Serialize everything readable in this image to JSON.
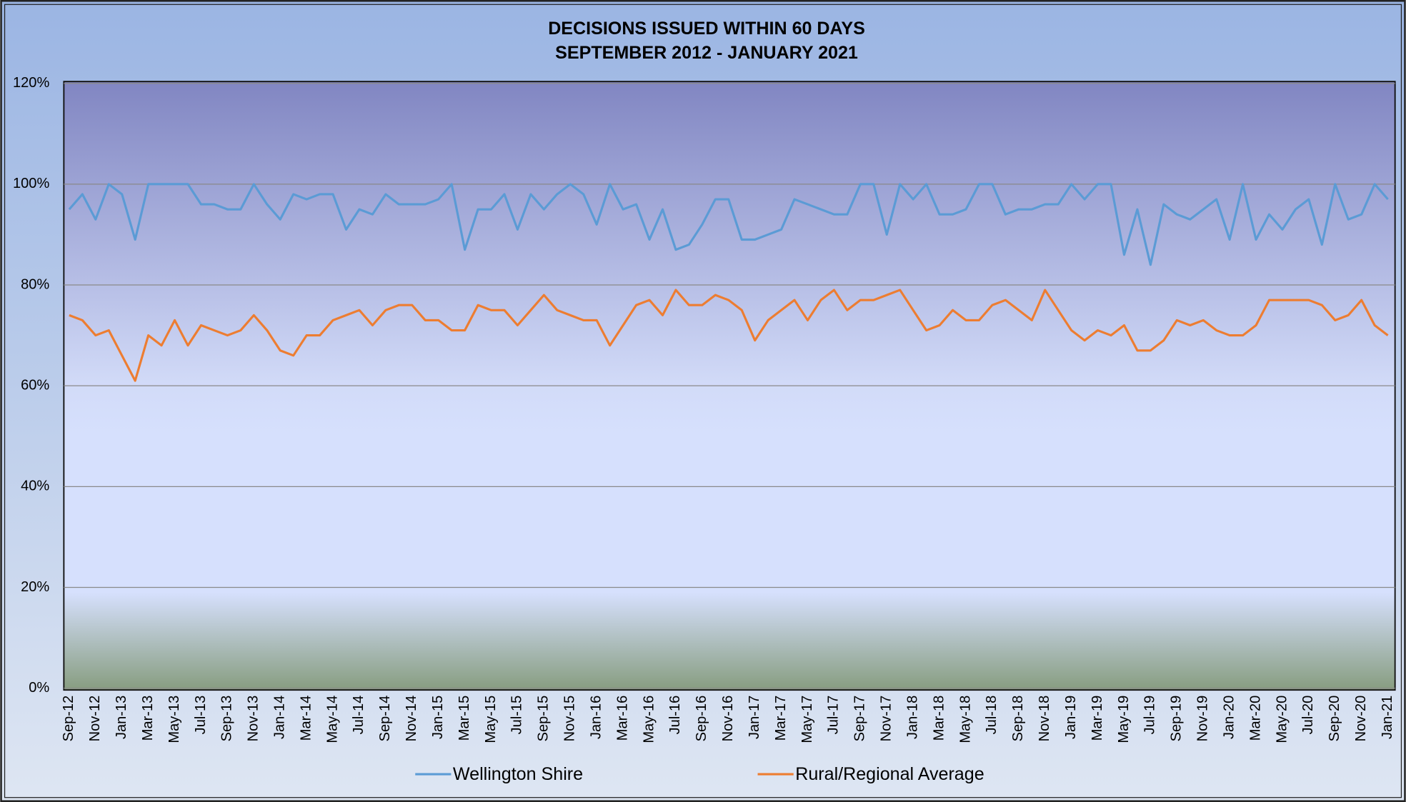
{
  "chart_data": {
    "type": "line",
    "title": "DECISIONS  ISSUED WITHIN 60 DAYS",
    "subtitle": "SEPTEMBER 2012 - JANUARY 2021",
    "categories": [
      "Sep-12",
      null,
      "Nov-12",
      null,
      "Jan-13",
      null,
      "Mar-13",
      null,
      "May-13",
      null,
      "Jul-13",
      null,
      "Sep-13",
      null,
      "Nov-13",
      null,
      "Jan-14",
      null,
      "Mar-14",
      null,
      "May-14",
      null,
      "Jul-14",
      null,
      "Sep-14",
      null,
      "Nov-14",
      null,
      "Jan-15",
      null,
      "Mar-15",
      null,
      "May-15",
      null,
      "Jul-15",
      null,
      "Sep-15",
      null,
      "Nov-15",
      null,
      "Jan-16",
      null,
      "Mar-16",
      null,
      "May-16",
      null,
      "Jul-16",
      null,
      "Sep-16",
      null,
      "Nov-16",
      null,
      "Jan-17",
      null,
      "Mar-17",
      null,
      "May-17",
      null,
      "Jul-17",
      null,
      "Sep-17",
      null,
      "Nov-17",
      null,
      "Jan-18",
      null,
      "Mar-18",
      null,
      "May-18",
      null,
      "Jul-18",
      null,
      "Sep-18",
      null,
      "Nov-18",
      null,
      "Jan-19",
      null,
      "Mar-19",
      null,
      "May-19",
      null,
      "Jul-19",
      null,
      "Sep-19",
      null,
      "Nov-19",
      null,
      "Jan-20",
      null,
      "Mar-20",
      null,
      "May-20",
      null,
      "Jul-20",
      null,
      "Sep-20",
      null,
      "Nov-20",
      null,
      "Jan-21"
    ],
    "series": [
      {
        "name": "Wellington Shire",
        "color": "#5b9bd5",
        "values": [
          95,
          98,
          93,
          100,
          98,
          89,
          100,
          100,
          100,
          100,
          96,
          96,
          95,
          95,
          100,
          96,
          93,
          98,
          97,
          98,
          98,
          91,
          95,
          94,
          98,
          96,
          96,
          96,
          97,
          100,
          87,
          95,
          95,
          98,
          91,
          98,
          95,
          98,
          100,
          98,
          92,
          100,
          95,
          96,
          89,
          95,
          87,
          88,
          92,
          97,
          97,
          89,
          89,
          90,
          91,
          97,
          96,
          95,
          94,
          94,
          100,
          100,
          90,
          100,
          97,
          100,
          94,
          94,
          95,
          100,
          100,
          94,
          95,
          95,
          96,
          96,
          100,
          97,
          100,
          100,
          86,
          95,
          84,
          96,
          94,
          93,
          95,
          97,
          89,
          100,
          89,
          94,
          91,
          95,
          97,
          88,
          100,
          93,
          94,
          100,
          97
        ]
      },
      {
        "name": "Rural/Regional Average",
        "color": "#ed7d31",
        "values": [
          74,
          73,
          70,
          71,
          66,
          61,
          70,
          68,
          73,
          68,
          72,
          71,
          70,
          71,
          74,
          71,
          67,
          66,
          70,
          70,
          73,
          74,
          75,
          72,
          75,
          76,
          76,
          73,
          73,
          71,
          71,
          76,
          75,
          75,
          72,
          75,
          78,
          75,
          74,
          73,
          73,
          68,
          72,
          76,
          77,
          74,
          79,
          76,
          76,
          78,
          77,
          75,
          69,
          73,
          75,
          77,
          73,
          77,
          79,
          75,
          77,
          77,
          78,
          79,
          75,
          71,
          72,
          75,
          73,
          73,
          76,
          77,
          75,
          73,
          79,
          75,
          71,
          69,
          71,
          70,
          72,
          67,
          67,
          69,
          73,
          72,
          73,
          71,
          70,
          70,
          72,
          77,
          77,
          77,
          77,
          76,
          73,
          74,
          77,
          72,
          70
        ]
      }
    ],
    "ylim": [
      0,
      120
    ],
    "yticks": [
      {
        "value": 0,
        "label": "0%"
      },
      {
        "value": 20,
        "label": "20%"
      },
      {
        "value": 40,
        "label": "40%"
      },
      {
        "value": 60,
        "label": "60%"
      },
      {
        "value": 80,
        "label": "80%"
      },
      {
        "value": 100,
        "label": "100%"
      },
      {
        "value": 120,
        "label": "120%"
      }
    ],
    "grid": true,
    "legend": "bottom"
  }
}
